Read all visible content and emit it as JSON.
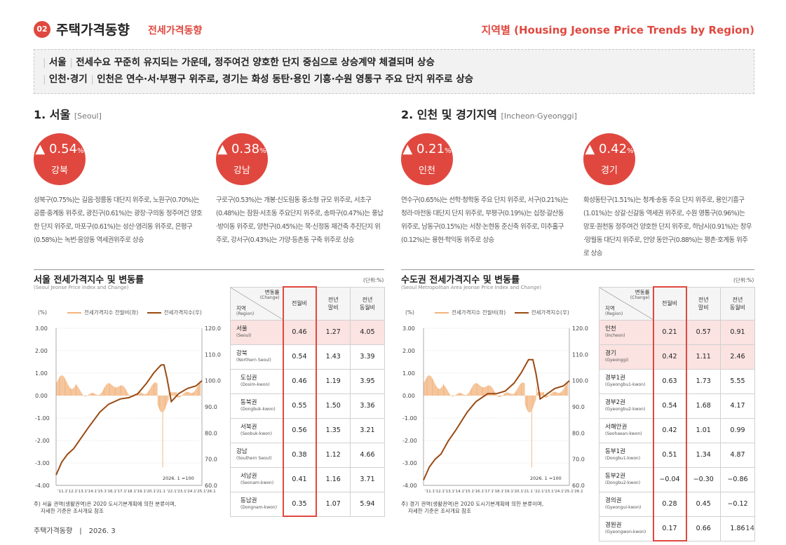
{
  "header": {
    "badge": "02",
    "title": "주택가격동향",
    "subtitle": "전세가격동향",
    "right": "지역별 (Housing Jeonse Price Trends by Region)"
  },
  "summary": {
    "line1_region": "서울",
    "line1_text": "전세수요 꾸준히 유지되는 가운데, 정주여건 양호한 단지 중심으로 상승계약 체결되며 상승",
    "line2_region": "인천·경기",
    "line2_text": "인천은 연수·서·부평구 위주로, 경기는 화성 동탄·용인 기흥·수원 영통구 주요 단지 위주로 상승"
  },
  "seoul": {
    "title": "1. 서울",
    "title_en": "[Seoul]",
    "stats": [
      {
        "value": "0.54",
        "unit": "%",
        "name": "강북",
        "desc": "성북구(0.75%)는 길음·정릉동 대단지 위주로, 노원구(0.70%)는 공릉·중계동 위주로, 광진구(0.61%)는 광장·구의동 정주여건 양호한 단지 위주로, 마포구(0.61%)는 성산·염리동 위주로, 은평구(0.58%)는 녹번·응암동 역세권위주로 상승"
      },
      {
        "value": "0.38",
        "unit": "%",
        "name": "강남",
        "desc": "구로구(0.53%)는 개봉·신도림동 중소형 규모 위주로, 서초구(0.48%)는 잠원·서초동 주요단지 위주로, 송파구(0.47%)는 풍납·방이동 위주로, 양천구(0.45%)는 목·신정동 재건축 추진단지 위주로, 강서구(0.43%)는 가양·등촌동 구축 위주로 상승"
      }
    ],
    "chart": {
      "title": "서울 전세가격지수 및 변동률",
      "subtitle": "(Seoul Jeonse Price Index and Change)",
      "unit": "(단위:%)",
      "y_unit": "(%)",
      "legend": [
        "전세가격지수 전월비(좌)",
        "전세가격지수(우)"
      ],
      "left_ticks": [
        "3.00",
        "2.00",
        "1.00",
        "0.00",
        "-1.00",
        "-2.00",
        "-3.00",
        "-4.00"
      ],
      "right_ticks": [
        "120.0",
        "110.0",
        "100.0",
        "90.0",
        "80.0",
        "70.0",
        "60.0"
      ],
      "x_labels": "'11.1'12.1'13.1'14.1'15.1'16.1'17.1'18.1'19.1'20.1'21.1 '22.1'23.1'24.1'25.1'26.1",
      "base_note": "2026. 1 =100"
    },
    "note_line1": "주) 서울 권역(생활권역)은 2020 도시기본계획에 의한 분류이며,",
    "note_line2": "자세한 기준은 조사개요 참조",
    "table": {
      "hdr_change": "변동률",
      "hdr_change_en": "(Change)",
      "hdr_region": "지역",
      "hdr_region_en": "(Region)",
      "col1": "전월비",
      "col2a": "전년",
      "col2b": "말비",
      "col3a": "전년",
      "col3b": "동월비",
      "rows": [
        {
          "name": "서울",
          "en": "(Seoul)",
          "v1": "0.46",
          "v2": "1.27",
          "v3": "4.05"
        },
        {
          "name": "강북",
          "en": "(Northern Seoul)",
          "v1": "0.54",
          "v2": "1.43",
          "v3": "3.39"
        },
        {
          "name": "도심권",
          "en": "(Dosim-kwon)",
          "v1": "0.46",
          "v2": "1.19",
          "v3": "3.95"
        },
        {
          "name": "동북권",
          "en": "(Dongbuk-kwon)",
          "v1": "0.55",
          "v2": "1.50",
          "v3": "3.36"
        },
        {
          "name": "서북권",
          "en": "(Seobuk-kwon)",
          "v1": "0.56",
          "v2": "1.35",
          "v3": "3.21"
        },
        {
          "name": "강남",
          "en": "(Southern Seoul)",
          "v1": "0.38",
          "v2": "1.12",
          "v3": "4.66"
        },
        {
          "name": "서남권",
          "en": "(Seonam-kwon)",
          "v1": "0.41",
          "v2": "1.16",
          "v3": "3.71"
        },
        {
          "name": "동남권",
          "en": "(Dongnam-kwon)",
          "v1": "0.35",
          "v2": "1.07",
          "v3": "5.94"
        }
      ]
    }
  },
  "incheon": {
    "title": "2. 인천 및 경기지역",
    "title_en": "[Incheon·Gyeonggi]",
    "stats": [
      {
        "value": "0.21",
        "unit": "%",
        "name": "인천",
        "desc": "연수구(0.65%)는 선학·청학동 주요 단지 위주로, 서구(0.21%)는 청라·마전동 대단지 단지 위주로, 부평구(0.19%)는 십정·갈산동 위주로, 남동구(0.15%)는 서창·논현동 준신축 위주로, 미추홀구(0.12%)는 용현·학익동 위주로 상승"
      },
      {
        "value": "0.42",
        "unit": "%",
        "name": "경기",
        "desc": "화성동탄구(1.51%)는 청계·송동 주요 단지 위주로, 용인기흥구(1.01%)는 상갈·신갈동 역세권 위주로, 수원 영통구(0.96%)는 망포·원천동 정주여건 양호한 단지 위주로, 하남시(0.91%)는 창우·망월동 대단지 위주로, 안양 동안구(0.88%)는 평촌·호계동 위주로 상승"
      }
    ],
    "chart": {
      "title": "수도권 전세가격지수 및 변동률",
      "subtitle": "(Seoul Metropolitan Area Jeonse Price Index and Change)",
      "unit": "(단위:%)",
      "y_unit": "(%)",
      "legend": [
        "전세가격지수 전월비(좌)",
        "전세가격지수(우)"
      ],
      "left_ticks": [
        "3.00",
        "2.00",
        "1.00",
        "0.00",
        "-1.00",
        "-2.00",
        "-3.00",
        "-4.00"
      ],
      "right_ticks": [
        "120.0",
        "110.0",
        "100.0",
        "90.0",
        "80.0",
        "70.0",
        "60.0"
      ],
      "x_labels": "'11.1'12.1'13.1'14.1'15.1'16.1'17.1'18.1'19.1'20.1'21.1 '22.1'23.1'24.1'25.1'26.1",
      "base_note": "2026. 1 =100"
    },
    "note_line1": "주) 경기 권역(생활권역)은 2020 도시기본계획에 의한 분류이며,",
    "note_line2": "자세한 기준은 조사개요 참조",
    "table": {
      "hdr_change": "변동률",
      "hdr_change_en": "(Change)",
      "hdr_region": "지역",
      "hdr_region_en": "(Region)",
      "col1": "전월비",
      "col2a": "전년",
      "col2b": "말비",
      "col3a": "전년",
      "col3b": "동월비",
      "rows": [
        {
          "name": "인천",
          "en": "(Incheon)",
          "v1": "0.21",
          "v2": "0.57",
          "v3": "0.91"
        },
        {
          "name": "경기",
          "en": "(Gyeonggi)",
          "v1": "0.42",
          "v2": "1.11",
          "v3": "2.46"
        },
        {
          "name": "경부1권",
          "en": "(Gyeongbu1-kwon)",
          "v1": "0.63",
          "v2": "1.73",
          "v3": "5.55"
        },
        {
          "name": "경부2권",
          "en": "(Gyeongbu2-kwon)",
          "v1": "0.54",
          "v2": "1.68",
          "v3": "4.17"
        },
        {
          "name": "서해안권",
          "en": "(Seohaean-kwon)",
          "v1": "0.42",
          "v2": "1.01",
          "v3": "0.99"
        },
        {
          "name": "동부1권",
          "en": "(Dongbu1-kwon)",
          "v1": "0.51",
          "v2": "1.34",
          "v3": "4.87"
        },
        {
          "name": "동부2권",
          "en": "(Dongbu2-kwon)",
          "v1": "−0.04",
          "v2": "−0.30",
          "v3": "−0.86"
        },
        {
          "name": "경의권",
          "en": "(Gyeongui-kwon)",
          "v1": "0.28",
          "v2": "0.45",
          "v3": "−0.12"
        },
        {
          "name": "경원권",
          "en": "(Gyeongwon-kwon)",
          "v1": "0.17",
          "v2": "0.66",
          "v3": "1.86"
        }
      ]
    }
  },
  "footer": {
    "text": "주택가격동향　|　2026. 3",
    "page": "14"
  },
  "colors": {
    "accent": "#e0483f",
    "index_line": "#9a4a12",
    "change_bars": "#f2b37c",
    "highlight_row": "#fbe3e1"
  }
}
